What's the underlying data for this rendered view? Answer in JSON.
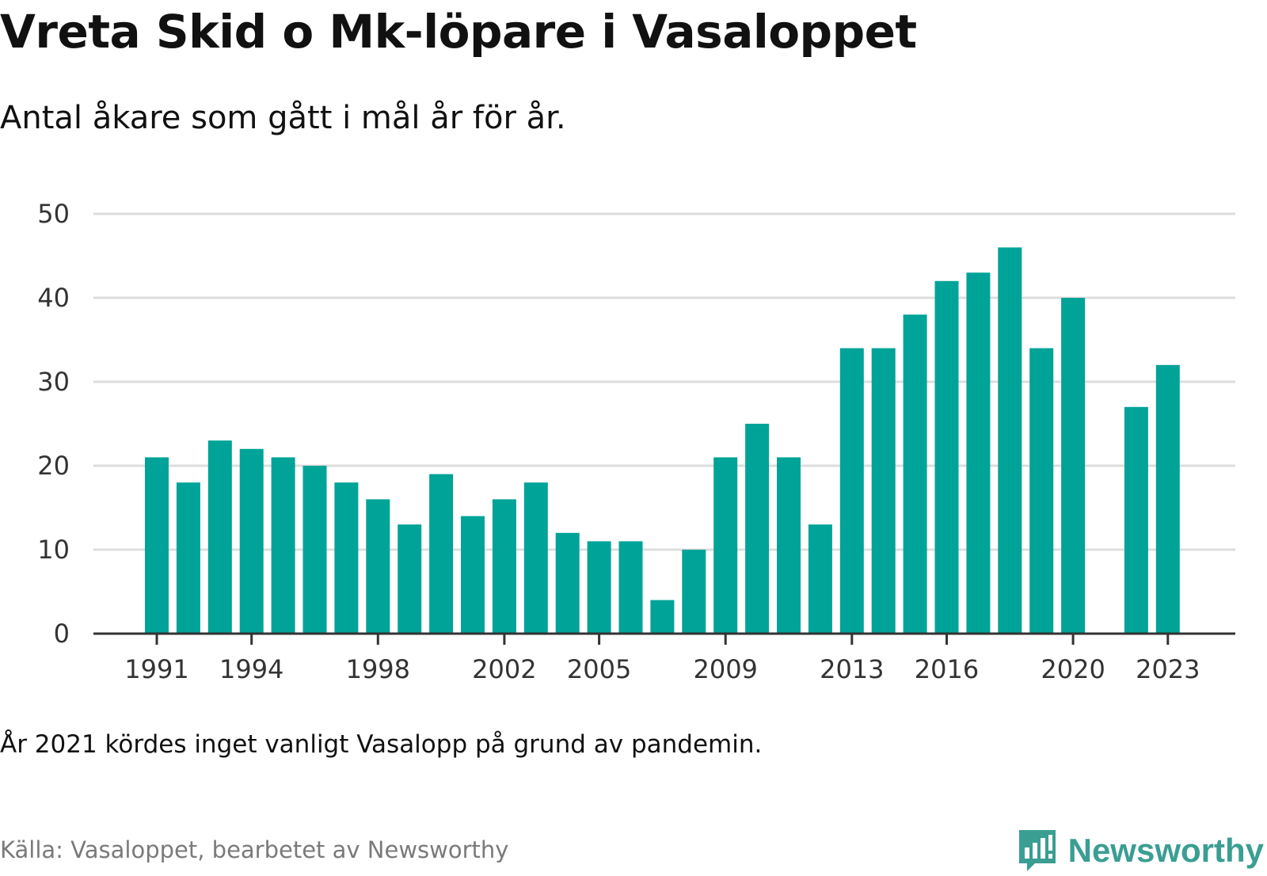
{
  "title": "Vreta Skid o Mk-löpare i Vasaloppet",
  "subtitle": "Antal åkare som gått i mål år för år.",
  "note": "År 2021 kördes inget vanligt Vasalopp på grund av pandemin.",
  "source": "Källa: Vasaloppet, bearbetet av Newsworthy",
  "brand": {
    "name": "Newsworthy",
    "icon": "newsworthy-logo-icon",
    "color": "#3a9e92"
  },
  "colors": {
    "bar": "#00a398",
    "grid": "#dddddd",
    "axis": "#333333"
  },
  "chart_data": {
    "type": "bar",
    "title": "Vreta Skid o Mk-löpare i Vasaloppet",
    "subtitle": "Antal åkare som gått i mål år för år.",
    "xlabel": "",
    "ylabel": "",
    "x": [
      1991,
      1992,
      1993,
      1994,
      1995,
      1996,
      1997,
      1998,
      1999,
      2000,
      2001,
      2002,
      2003,
      2004,
      2005,
      2006,
      2007,
      2008,
      2009,
      2010,
      2011,
      2012,
      2013,
      2014,
      2015,
      2016,
      2017,
      2018,
      2019,
      2020,
      2021,
      2022,
      2023
    ],
    "values": [
      21,
      18,
      23,
      22,
      21,
      20,
      18,
      16,
      13,
      19,
      14,
      16,
      18,
      12,
      11,
      11,
      4,
      10,
      21,
      25,
      21,
      13,
      34,
      34,
      38,
      42,
      43,
      46,
      34,
      40,
      null,
      27,
      32
    ],
    "x_tick_labels": [
      "1991",
      "1994",
      "1998",
      "2002",
      "2005",
      "2009",
      "2013",
      "2016",
      "2020",
      "2023"
    ],
    "y_ticks": [
      0,
      10,
      20,
      30,
      40,
      50
    ],
    "ylim": [
      0,
      50
    ],
    "grid": true,
    "legend": "none"
  }
}
